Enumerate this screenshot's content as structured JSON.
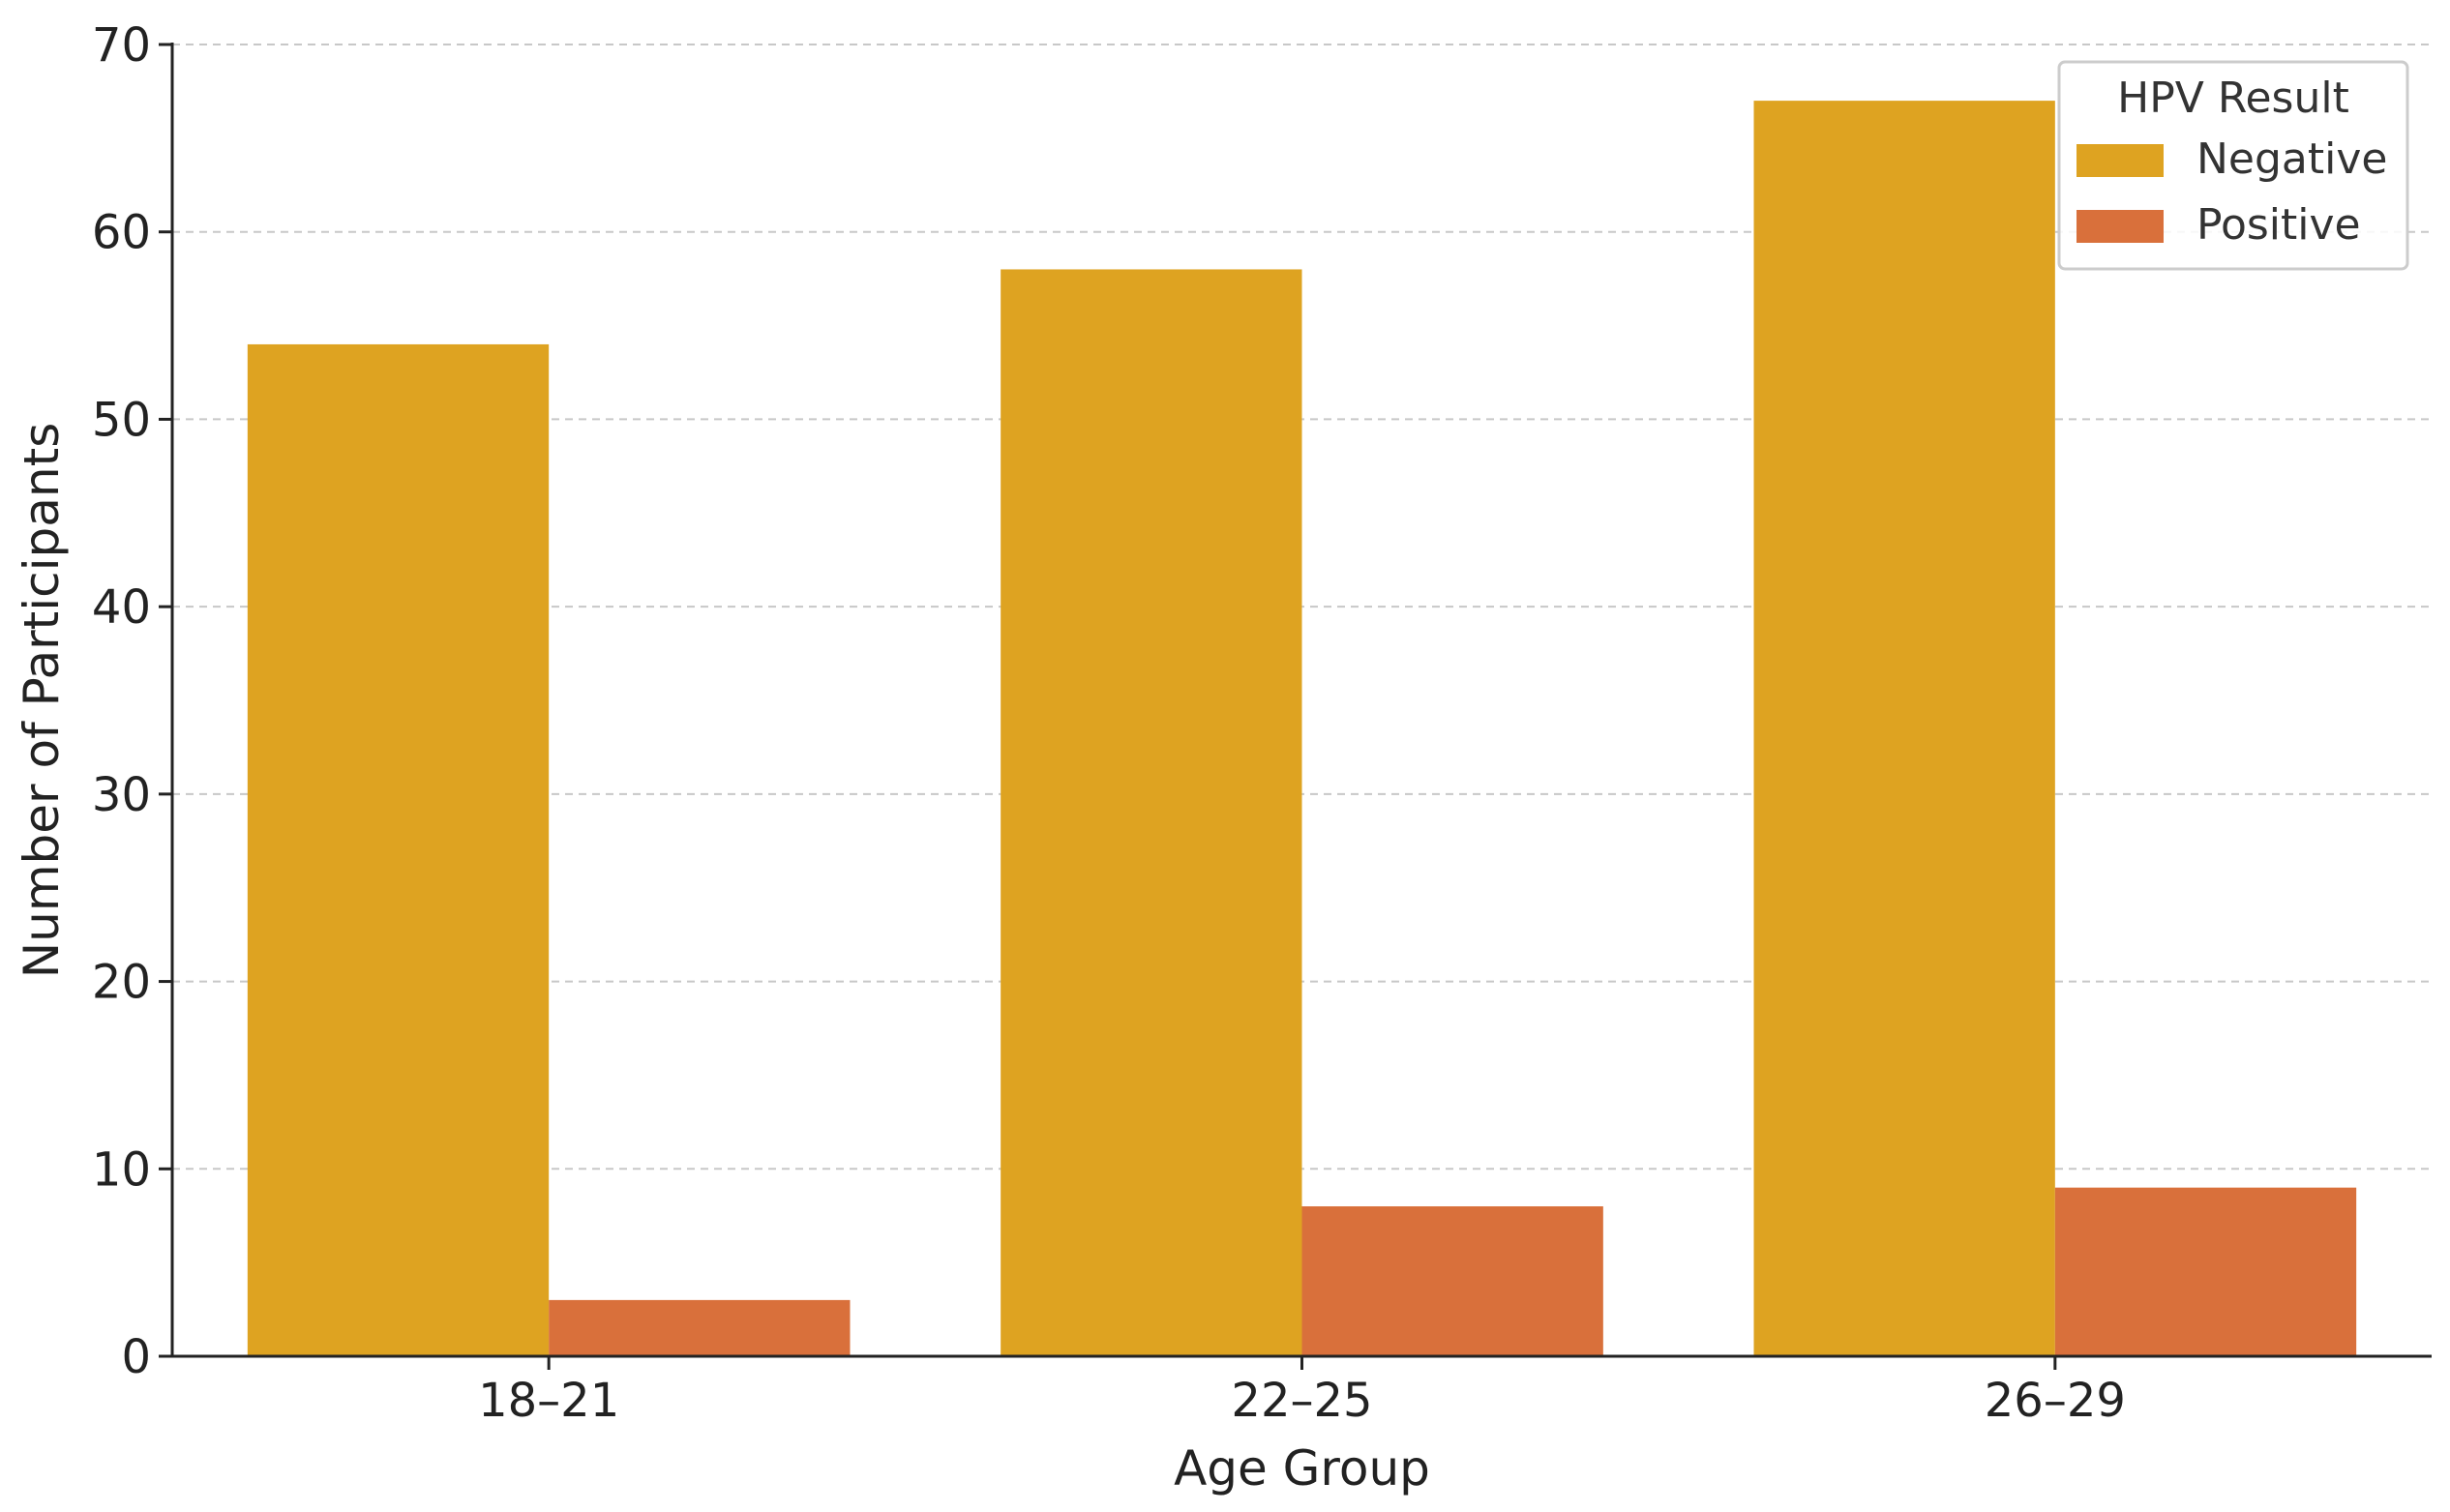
{
  "chart_data": {
    "type": "bar",
    "title": "",
    "xlabel": "Age Group",
    "ylabel": "Number of Participants",
    "categories": [
      "18–21",
      "22–25",
      "26–29"
    ],
    "series": [
      {
        "name": "Negative",
        "values": [
          54,
          58,
          67
        ],
        "color": "#dea321"
      },
      {
        "name": "Positive",
        "values": [
          3,
          8,
          9
        ],
        "color": "#d9703b"
      }
    ],
    "ylim": [
      0,
      70
    ],
    "yticks": [
      0,
      10,
      20,
      30,
      40,
      50,
      60,
      70
    ],
    "grid": "horizontal dashed",
    "legend": {
      "title": "HPV Result",
      "placement": "top-right"
    }
  }
}
